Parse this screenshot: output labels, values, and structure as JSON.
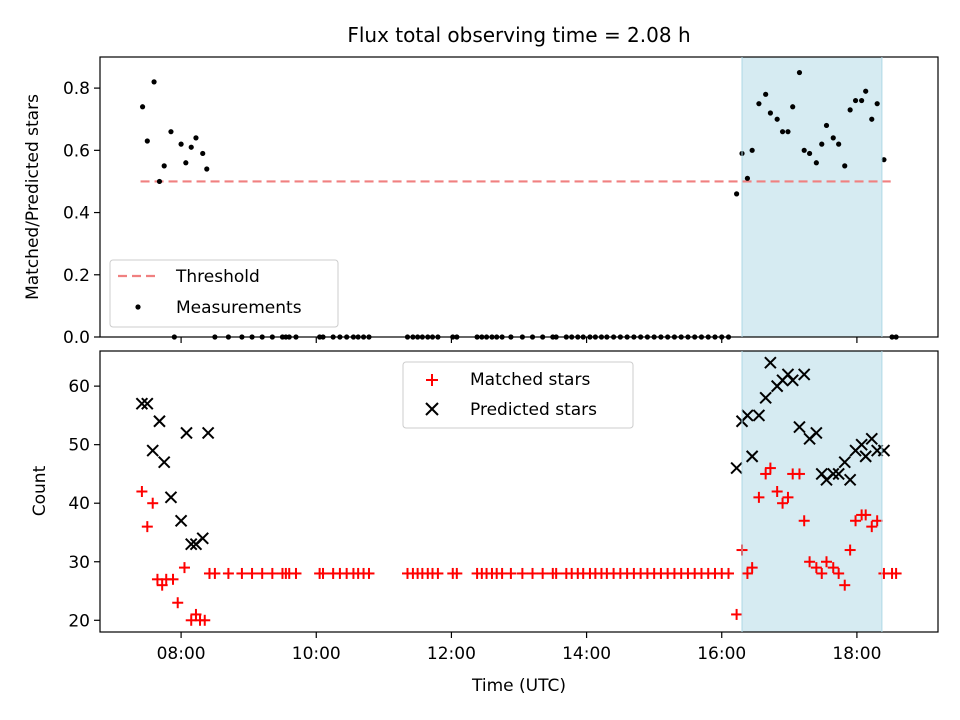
{
  "colors": {
    "measurement": "#000000",
    "threshold": "#f08080",
    "matched": "#ff0000",
    "predicted": "#000000",
    "highlight": "#add8e6"
  },
  "chart_data": [
    {
      "type": "scatter",
      "title": "Flux total observing time = 2.08 h",
      "xlabel": "",
      "ylabel": "Matched/Predicted stars",
      "xlim_hours": [
        6.8,
        19.2
      ],
      "ylim": [
        0,
        0.9
      ],
      "yticks": [
        "0.0",
        "0.2",
        "0.4",
        "0.6",
        "0.8"
      ],
      "highlight_span_hours": [
        16.3,
        18.37
      ],
      "threshold": {
        "name": "Threshold",
        "value": 0.5,
        "x_start": 7.4,
        "x_end": 18.5
      },
      "measurement_name": "Measurements",
      "legend_position": "lower-left",
      "points": [
        [
          7.43,
          0.74
        ],
        [
          7.5,
          0.63
        ],
        [
          7.6,
          0.82
        ],
        [
          7.68,
          0.5
        ],
        [
          7.75,
          0.55
        ],
        [
          7.85,
          0.66
        ],
        [
          8.0,
          0.62
        ],
        [
          8.07,
          0.56
        ],
        [
          8.15,
          0.61
        ],
        [
          8.22,
          0.64
        ],
        [
          8.32,
          0.59
        ],
        [
          8.38,
          0.54
        ],
        [
          7.9,
          0.0
        ],
        [
          8.5,
          0.0
        ],
        [
          8.7,
          0.0
        ],
        [
          8.9,
          0.0
        ],
        [
          9.05,
          0.0
        ],
        [
          9.2,
          0.0
        ],
        [
          9.35,
          0.0
        ],
        [
          9.5,
          0.0
        ],
        [
          9.55,
          0.0
        ],
        [
          9.6,
          0.0
        ],
        [
          9.7,
          0.0
        ],
        [
          10.05,
          0.0
        ],
        [
          10.1,
          0.0
        ],
        [
          10.25,
          0.0
        ],
        [
          10.35,
          0.0
        ],
        [
          10.45,
          0.0
        ],
        [
          10.55,
          0.0
        ],
        [
          10.62,
          0.0
        ],
        [
          10.7,
          0.0
        ],
        [
          10.78,
          0.0
        ],
        [
          11.35,
          0.0
        ],
        [
          11.43,
          0.0
        ],
        [
          11.5,
          0.0
        ],
        [
          11.57,
          0.0
        ],
        [
          11.65,
          0.0
        ],
        [
          11.72,
          0.0
        ],
        [
          11.8,
          0.0
        ],
        [
          12.02,
          0.0
        ],
        [
          12.08,
          0.0
        ],
        [
          12.38,
          0.0
        ],
        [
          12.45,
          0.0
        ],
        [
          12.52,
          0.0
        ],
        [
          12.6,
          0.0
        ],
        [
          12.67,
          0.0
        ],
        [
          12.75,
          0.0
        ],
        [
          12.88,
          0.0
        ],
        [
          13.05,
          0.0
        ],
        [
          13.2,
          0.0
        ],
        [
          13.35,
          0.0
        ],
        [
          13.5,
          0.0
        ],
        [
          13.55,
          0.0
        ],
        [
          13.7,
          0.0
        ],
        [
          13.78,
          0.0
        ],
        [
          13.87,
          0.0
        ],
        [
          13.95,
          0.0
        ],
        [
          14.05,
          0.0
        ],
        [
          14.13,
          0.0
        ],
        [
          14.22,
          0.0
        ],
        [
          14.3,
          0.0
        ],
        [
          14.4,
          0.0
        ],
        [
          14.5,
          0.0
        ],
        [
          14.6,
          0.0
        ],
        [
          14.7,
          0.0
        ],
        [
          14.8,
          0.0
        ],
        [
          14.9,
          0.0
        ],
        [
          15.0,
          0.0
        ],
        [
          15.1,
          0.0
        ],
        [
          15.2,
          0.0
        ],
        [
          15.3,
          0.0
        ],
        [
          15.4,
          0.0
        ],
        [
          15.5,
          0.0
        ],
        [
          15.6,
          0.0
        ],
        [
          15.7,
          0.0
        ],
        [
          15.8,
          0.0
        ],
        [
          15.9,
          0.0
        ],
        [
          16.0,
          0.0
        ],
        [
          16.1,
          0.0
        ],
        [
          18.52,
          0.0
        ],
        [
          18.58,
          0.0
        ],
        [
          16.22,
          0.46
        ],
        [
          16.3,
          0.59
        ],
        [
          16.38,
          0.51
        ],
        [
          16.45,
          0.6
        ],
        [
          16.55,
          0.75
        ],
        [
          16.65,
          0.78
        ],
        [
          16.72,
          0.72
        ],
        [
          16.82,
          0.7
        ],
        [
          16.9,
          0.66
        ],
        [
          16.98,
          0.66
        ],
        [
          17.05,
          0.74
        ],
        [
          17.15,
          0.85
        ],
        [
          17.22,
          0.6
        ],
        [
          17.3,
          0.59
        ],
        [
          17.4,
          0.56
        ],
        [
          17.48,
          0.62
        ],
        [
          17.55,
          0.68
        ],
        [
          17.65,
          0.64
        ],
        [
          17.73,
          0.62
        ],
        [
          17.82,
          0.55
        ],
        [
          17.9,
          0.73
        ],
        [
          17.98,
          0.76
        ],
        [
          18.07,
          0.76
        ],
        [
          18.13,
          0.79
        ],
        [
          18.22,
          0.7
        ],
        [
          18.3,
          0.75
        ],
        [
          18.4,
          0.57
        ]
      ]
    },
    {
      "type": "scatter",
      "title": "",
      "xlabel": "Time (UTC)",
      "ylabel": "Count",
      "xlim_hours": [
        6.8,
        19.2
      ],
      "ylim": [
        18,
        66
      ],
      "yticks": [
        "20",
        "30",
        "40",
        "50",
        "60"
      ],
      "xtick_hours": [
        8,
        10,
        12,
        14,
        16,
        18
      ],
      "xticks": [
        "08:00",
        "10:00",
        "12:00",
        "14:00",
        "16:00",
        "18:00"
      ],
      "highlight_span_hours": [
        16.3,
        18.37
      ],
      "legend_position": "upper-center",
      "series": [
        {
          "name": "Matched stars",
          "marker": "plus",
          "points": [
            [
              7.42,
              42
            ],
            [
              7.5,
              36
            ],
            [
              7.58,
              40
            ],
            [
              7.65,
              27
            ],
            [
              7.72,
              26
            ],
            [
              7.78,
              27
            ],
            [
              7.88,
              27
            ],
            [
              7.95,
              23
            ],
            [
              8.05,
              29
            ],
            [
              8.15,
              20
            ],
            [
              8.22,
              21
            ],
            [
              8.28,
              20
            ],
            [
              8.35,
              20
            ],
            [
              8.42,
              28
            ],
            [
              8.5,
              28
            ],
            [
              8.7,
              28
            ],
            [
              8.9,
              28
            ],
            [
              9.05,
              28
            ],
            [
              9.2,
              28
            ],
            [
              9.35,
              28
            ],
            [
              9.5,
              28
            ],
            [
              9.55,
              28
            ],
            [
              9.6,
              28
            ],
            [
              9.7,
              28
            ],
            [
              10.05,
              28
            ],
            [
              10.1,
              28
            ],
            [
              10.25,
              28
            ],
            [
              10.35,
              28
            ],
            [
              10.45,
              28
            ],
            [
              10.55,
              28
            ],
            [
              10.62,
              28
            ],
            [
              10.7,
              28
            ],
            [
              10.78,
              28
            ],
            [
              11.35,
              28
            ],
            [
              11.43,
              28
            ],
            [
              11.5,
              28
            ],
            [
              11.57,
              28
            ],
            [
              11.65,
              28
            ],
            [
              11.72,
              28
            ],
            [
              11.8,
              28
            ],
            [
              12.02,
              28
            ],
            [
              12.08,
              28
            ],
            [
              12.38,
              28
            ],
            [
              12.45,
              28
            ],
            [
              12.52,
              28
            ],
            [
              12.6,
              28
            ],
            [
              12.67,
              28
            ],
            [
              12.75,
              28
            ],
            [
              12.88,
              28
            ],
            [
              13.05,
              28
            ],
            [
              13.2,
              28
            ],
            [
              13.35,
              28
            ],
            [
              13.5,
              28
            ],
            [
              13.55,
              28
            ],
            [
              13.7,
              28
            ],
            [
              13.78,
              28
            ],
            [
              13.87,
              28
            ],
            [
              13.95,
              28
            ],
            [
              14.05,
              28
            ],
            [
              14.13,
              28
            ],
            [
              14.22,
              28
            ],
            [
              14.3,
              28
            ],
            [
              14.4,
              28
            ],
            [
              14.5,
              28
            ],
            [
              14.6,
              28
            ],
            [
              14.7,
              28
            ],
            [
              14.8,
              28
            ],
            [
              14.9,
              28
            ],
            [
              15.0,
              28
            ],
            [
              15.1,
              28
            ],
            [
              15.2,
              28
            ],
            [
              15.3,
              28
            ],
            [
              15.4,
              28
            ],
            [
              15.5,
              28
            ],
            [
              15.6,
              28
            ],
            [
              15.7,
              28
            ],
            [
              15.8,
              28
            ],
            [
              15.9,
              28
            ],
            [
              16.0,
              28
            ],
            [
              16.1,
              28
            ],
            [
              16.22,
              21
            ],
            [
              16.3,
              32
            ],
            [
              16.38,
              28
            ],
            [
              16.45,
              29
            ],
            [
              16.55,
              41
            ],
            [
              16.65,
              45
            ],
            [
              16.72,
              46
            ],
            [
              16.82,
              42
            ],
            [
              16.9,
              40
            ],
            [
              16.98,
              41
            ],
            [
              17.05,
              45
            ],
            [
              17.15,
              45
            ],
            [
              17.22,
              37
            ],
            [
              17.3,
              30
            ],
            [
              17.4,
              29
            ],
            [
              17.48,
              28
            ],
            [
              17.55,
              30
            ],
            [
              17.65,
              29
            ],
            [
              17.73,
              28
            ],
            [
              17.82,
              26
            ],
            [
              17.9,
              32
            ],
            [
              17.98,
              37
            ],
            [
              18.07,
              38
            ],
            [
              18.13,
              38
            ],
            [
              18.22,
              36
            ],
            [
              18.3,
              37
            ],
            [
              18.4,
              28
            ],
            [
              18.52,
              28
            ],
            [
              18.58,
              28
            ]
          ]
        },
        {
          "name": "Predicted stars",
          "marker": "x",
          "points": [
            [
              7.42,
              57
            ],
            [
              7.5,
              57
            ],
            [
              7.58,
              49
            ],
            [
              7.68,
              54
            ],
            [
              7.75,
              47
            ],
            [
              7.85,
              41
            ],
            [
              8.0,
              37
            ],
            [
              8.08,
              52
            ],
            [
              8.15,
              33
            ],
            [
              8.22,
              33
            ],
            [
              8.32,
              34
            ],
            [
              8.4,
              52
            ],
            [
              16.22,
              46
            ],
            [
              16.3,
              54
            ],
            [
              16.38,
              55
            ],
            [
              16.45,
              48
            ],
            [
              16.55,
              55
            ],
            [
              16.65,
              58
            ],
            [
              16.72,
              64
            ],
            [
              16.82,
              60
            ],
            [
              16.9,
              61
            ],
            [
              16.98,
              62
            ],
            [
              17.05,
              61
            ],
            [
              17.15,
              53
            ],
            [
              17.22,
              62
            ],
            [
              17.3,
              51
            ],
            [
              17.4,
              52
            ],
            [
              17.48,
              45
            ],
            [
              17.55,
              44
            ],
            [
              17.65,
              45
            ],
            [
              17.73,
              45
            ],
            [
              17.82,
              47
            ],
            [
              17.9,
              44
            ],
            [
              17.98,
              49
            ],
            [
              18.07,
              50
            ],
            [
              18.13,
              48
            ],
            [
              18.22,
              51
            ],
            [
              18.3,
              49
            ],
            [
              18.4,
              49
            ]
          ]
        }
      ]
    }
  ]
}
